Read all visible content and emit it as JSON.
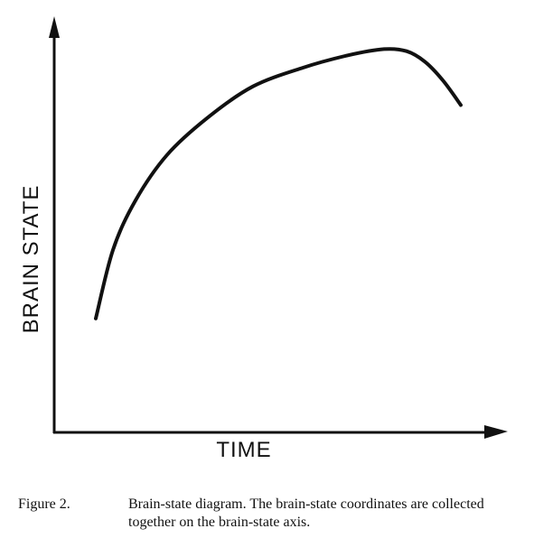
{
  "chart_data": {
    "type": "line",
    "title": "",
    "xlabel": "TIME",
    "ylabel": "BRAIN STATE",
    "x_ticks": [],
    "y_ticks": [],
    "grid": false,
    "legend": "none",
    "xlim": [
      0,
      100
    ],
    "ylim": [
      0,
      100
    ],
    "series": [
      {
        "x": [
          9.2,
          13,
          18,
          25,
          34,
          44,
          55,
          65,
          73,
          78,
          82,
          86,
          90
        ],
        "y": [
          27.5,
          44,
          56,
          67,
          76,
          83.5,
          88,
          91,
          92.5,
          92,
          89.5,
          85,
          79
        ],
        "color": "#111111"
      }
    ]
  },
  "caption": {
    "label": "Figure 2.",
    "text": "Brain-state diagram. The brain-state coordinates are collected together on the brain-state axis."
  }
}
